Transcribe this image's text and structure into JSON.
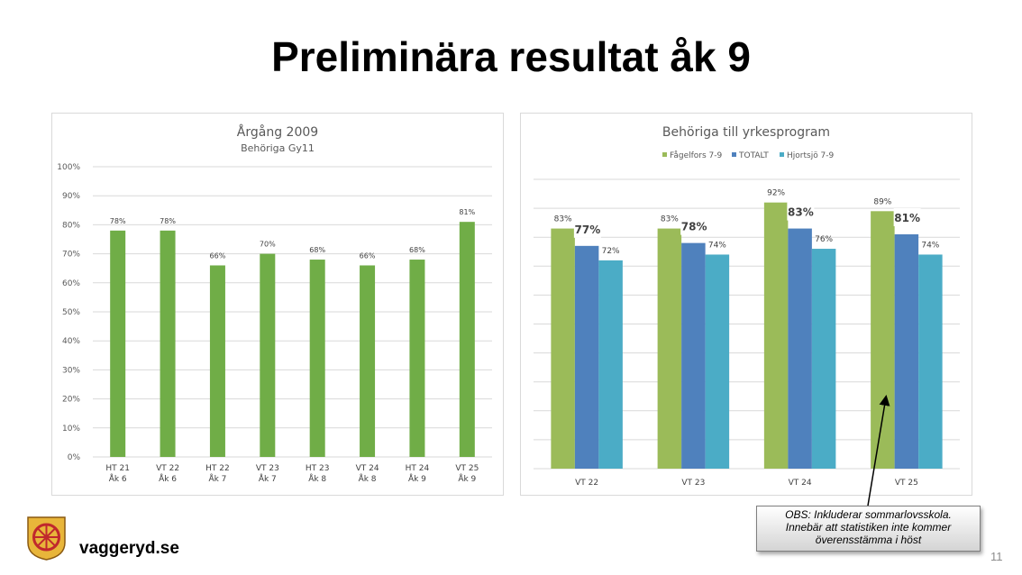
{
  "slide": {
    "title": "Preliminära resultat åk 9",
    "site": "vaggeryd.se",
    "page_number": "11",
    "note": {
      "line1": "OBS: Inkluderar sommarlovsskola.",
      "line2": "Innebär att statistiken inte kommer",
      "line3": "överensstämma i höst"
    }
  },
  "chart_data": [
    {
      "type": "bar",
      "title": "Årgång 2009",
      "subtitle": "Behöriga Gy11",
      "categories": [
        [
          "HT 21",
          "Åk 6"
        ],
        [
          "VT 22",
          "Åk 6"
        ],
        [
          "HT 22",
          "Åk 7"
        ],
        [
          "VT 23",
          "Åk 7"
        ],
        [
          "HT 23",
          "Åk 8"
        ],
        [
          "VT 24",
          "Åk 8"
        ],
        [
          "HT 24",
          "Åk 9"
        ],
        [
          "VT 25",
          "Åk 9"
        ]
      ],
      "values": [
        78,
        78,
        66,
        70,
        68,
        66,
        68,
        81
      ],
      "labels": [
        "78%",
        "78%",
        "66%",
        "70%",
        "68%",
        "66%",
        "68%",
        "81%"
      ],
      "ylim": [
        0,
        100
      ],
      "yticks": [
        "0%",
        "10%",
        "20%",
        "30%",
        "40%",
        "50%",
        "60%",
        "70%",
        "80%",
        "90%",
        "100%"
      ],
      "grid": true,
      "color": "#70ad47"
    },
    {
      "type": "bar",
      "title": "Behöriga till yrkesprogram",
      "categories": [
        "VT 22",
        "VT 23",
        "VT 24",
        "VT 25"
      ],
      "series": [
        {
          "name": "Fågelfors 7-9",
          "values": [
            83,
            83,
            92,
            89
          ],
          "labels": [
            "83%",
            "83%",
            "92%",
            "89%"
          ],
          "color": "#9bbb59"
        },
        {
          "name": "TOTALT",
          "values": [
            77,
            78,
            83,
            81
          ],
          "labels": [
            "77%",
            "78%",
            "83%",
            "81%"
          ],
          "color": "#4f81bd"
        },
        {
          "name": "Hjortsjö 7-9",
          "values": [
            72,
            74,
            76,
            74
          ],
          "labels": [
            "72%",
            "74%",
            "76%",
            "74%"
          ],
          "color": "#4bacc6"
        }
      ],
      "ylim": [
        0,
        100
      ],
      "grid": true,
      "legend": "top-center"
    }
  ]
}
